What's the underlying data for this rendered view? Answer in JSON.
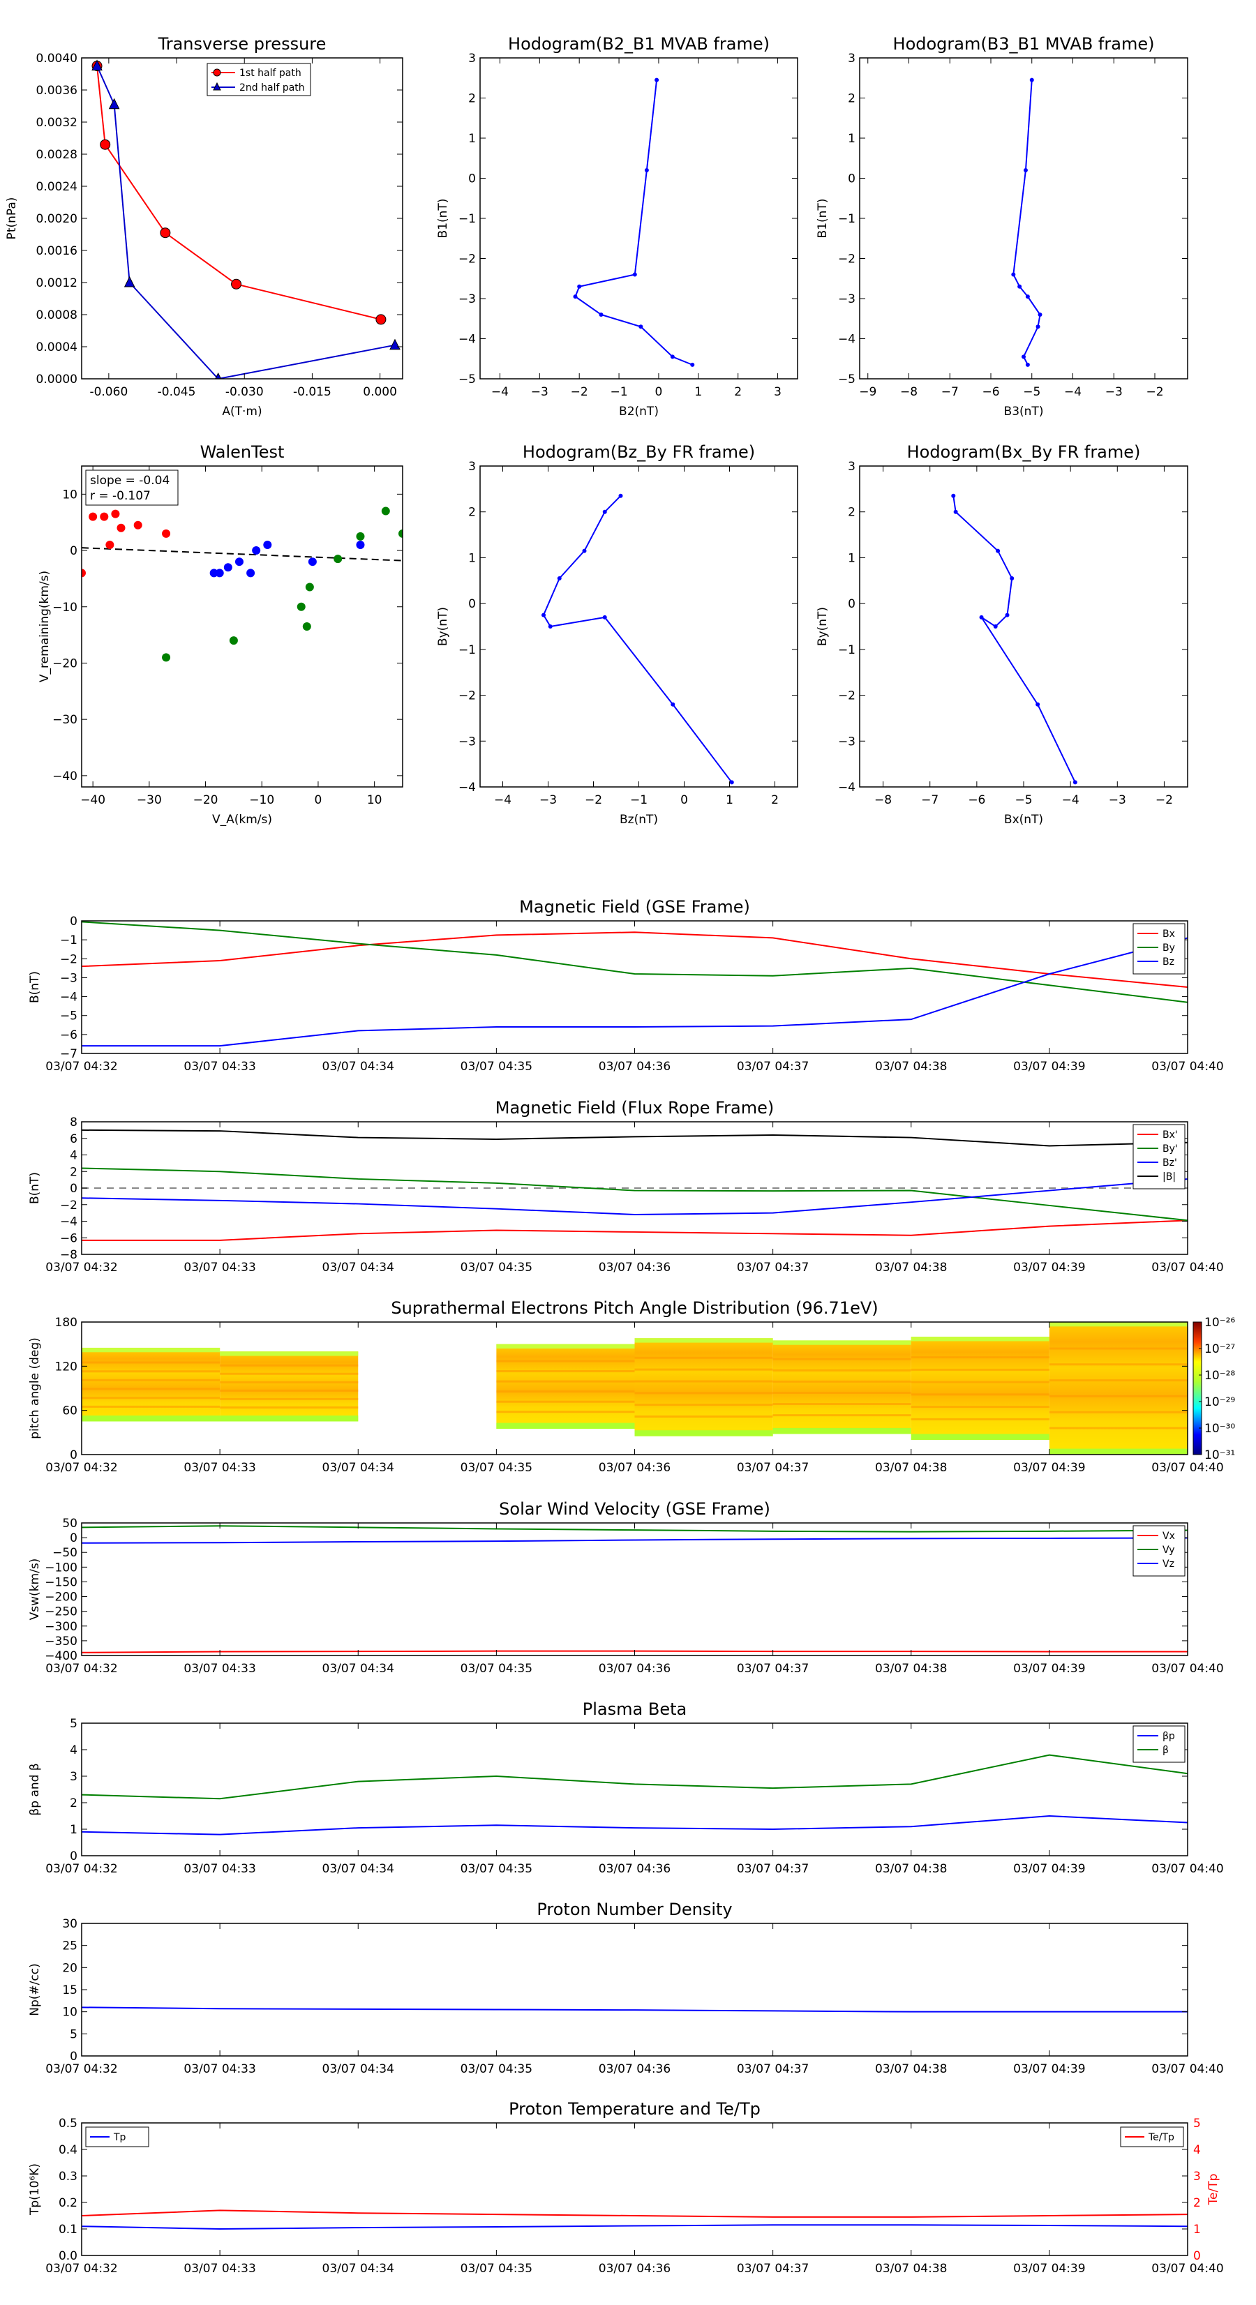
{
  "time_ticks": [
    "03/07 04:32",
    "03/07 04:33",
    "03/07 04:34",
    "03/07 04:35",
    "03/07 04:36",
    "03/07 04:37",
    "03/07 04:38",
    "03/07 04:39",
    "03/07 04:40"
  ],
  "chart_data": [
    {
      "id": "tp",
      "type": "line",
      "title": "Transverse pressure",
      "xlabel": "A(T·m)",
      "ylabel": "Pt(nPa)",
      "xlim": [
        -0.066,
        0.005
      ],
      "ylim": [
        0,
        0.004
      ],
      "xticks": [
        -0.06,
        -0.045,
        -0.03,
        -0.015,
        0.0
      ],
      "xtick_labels": [
        "-0.060",
        "-0.045",
        "-0.030",
        "-0.015",
        "0.000"
      ],
      "yticks": [
        0,
        0.0004,
        0.0008,
        0.0012,
        0.0016,
        0.002,
        0.0024,
        0.0028,
        0.0032,
        0.0036,
        0.004
      ],
      "ytick_labels": [
        "0.0000",
        "0.0004",
        "0.0008",
        "0.0012",
        "0.0016",
        "0.0020",
        "0.0024",
        "0.0028",
        "0.0032",
        "0.0036",
        "0.0040"
      ],
      "legend": "top-center",
      "series": [
        {
          "name": "1st half path",
          "color": "#ff0000",
          "marker": "circle",
          "x": [
            -0.0626,
            -0.0608,
            -0.0475,
            -0.0318,
            0.0002
          ],
          "y": [
            0.0039,
            0.00292,
            0.00182,
            0.00118,
            0.00074
          ]
        },
        {
          "name": "2nd half path",
          "color": "#0000cc",
          "marker": "triangle",
          "x": [
            -0.0626,
            -0.0588,
            -0.0554,
            -0.0358,
            0.0033
          ],
          "y": [
            0.0039,
            0.00342,
            0.0012,
            0.0,
            0.00042
          ]
        }
      ]
    },
    {
      "id": "h1",
      "type": "line",
      "title": "Hodogram(B2_B1 MVAB frame)",
      "xlabel": "B2(nT)",
      "ylabel": "B1(nT)",
      "xlim": [
        -4.5,
        3.5
      ],
      "ylim": [
        -5,
        3
      ],
      "xticks": [
        -4,
        -3,
        -2,
        -1,
        0,
        1,
        2,
        3
      ],
      "yticks": [
        -5,
        -4,
        -3,
        -2,
        -1,
        0,
        1,
        2,
        3
      ],
      "series": [
        {
          "color": "#0000ff",
          "x": [
            -0.05,
            -0.3,
            -0.6,
            -2.0,
            -2.1,
            -1.45,
            -0.45,
            0.35,
            0.85
          ],
          "y": [
            2.45,
            0.2,
            -2.4,
            -2.7,
            -2.95,
            -3.4,
            -3.7,
            -4.45,
            -4.65
          ]
        }
      ]
    },
    {
      "id": "h2",
      "type": "line",
      "title": "Hodogram(B3_B1 MVAB frame)",
      "xlabel": "B3(nT)",
      "ylabel": "B1(nT)",
      "xlim": [
        -9.2,
        -1.2
      ],
      "ylim": [
        -5,
        3
      ],
      "xticks": [
        -9,
        -8,
        -7,
        -6,
        -5,
        -4,
        -3,
        -2
      ],
      "yticks": [
        -5,
        -4,
        -3,
        -2,
        -1,
        0,
        1,
        2,
        3
      ],
      "series": [
        {
          "color": "#0000ff",
          "x": [
            -5.0,
            -5.15,
            -5.45,
            -5.3,
            -5.1,
            -4.8,
            -4.85,
            -5.2,
            -5.1
          ],
          "y": [
            2.45,
            0.2,
            -2.4,
            -2.7,
            -2.95,
            -3.4,
            -3.7,
            -4.45,
            -4.65
          ]
        }
      ]
    },
    {
      "id": "walen",
      "type": "scatter",
      "title": "WalenTest",
      "xlabel": "V_A(km/s)",
      "ylabel": "V_remaining(km/s)",
      "xlim": [
        -42,
        15
      ],
      "ylim": [
        -42,
        15
      ],
      "xticks": [
        -40,
        -30,
        -20,
        -10,
        0,
        10
      ],
      "yticks": [
        -40,
        -30,
        -20,
        -10,
        0,
        10
      ],
      "annotation": [
        "slope = -0.04",
        "r = -0.107"
      ],
      "fit": {
        "slope": -0.04,
        "intercept": -1.2
      },
      "series": [
        {
          "color": "#ff0000",
          "x": [
            -42,
            -40,
            -38,
            -37,
            -36,
            -35,
            -32,
            -27
          ],
          "y": [
            -4,
            6,
            6,
            1,
            6.5,
            4,
            4.5,
            3
          ]
        },
        {
          "color": "#0000ff",
          "x": [
            -18.5,
            -17.5,
            -16,
            -14,
            -12,
            -11,
            -9,
            -1,
            7.5
          ],
          "y": [
            -4,
            -4,
            -3,
            -2,
            -4,
            0,
            1,
            -2,
            1
          ]
        },
        {
          "color": "#008000",
          "x": [
            -27,
            -15,
            -3,
            -2,
            -1.5,
            3.5,
            7.5,
            12,
            15
          ],
          "y": [
            -19,
            -16,
            -10,
            -13.5,
            -6.5,
            -1.5,
            2.5,
            7,
            3
          ]
        }
      ]
    },
    {
      "id": "h3",
      "type": "line",
      "title": "Hodogram(Bz_By FR frame)",
      "xlabel": "Bz(nT)",
      "ylabel": "By(nT)",
      "xlim": [
        -4.5,
        2.5
      ],
      "ylim": [
        -4,
        3
      ],
      "xticks": [
        -4,
        -3,
        -2,
        -1,
        0,
        1,
        2
      ],
      "yticks": [
        -4,
        -3,
        -2,
        -1,
        0,
        1,
        2,
        3
      ],
      "series": [
        {
          "color": "#0000ff",
          "x": [
            -1.4,
            -1.75,
            -2.2,
            -2.75,
            -3.1,
            -2.95,
            -1.75,
            -0.25,
            1.05
          ],
          "y": [
            2.35,
            2.0,
            1.15,
            0.55,
            -0.25,
            -0.5,
            -0.3,
            -2.2,
            -3.9
          ]
        }
      ]
    },
    {
      "id": "h4",
      "type": "line",
      "title": "Hodogram(Bx_By FR frame)",
      "xlabel": "Bx(nT)",
      "ylabel": "By(nT)",
      "xlim": [
        -8.5,
        -1.5
      ],
      "ylim": [
        -4,
        3
      ],
      "xticks": [
        -8,
        -7,
        -6,
        -5,
        -4,
        -3,
        -2
      ],
      "yticks": [
        -4,
        -3,
        -2,
        -1,
        0,
        1,
        2,
        3
      ],
      "series": [
        {
          "color": "#0000ff",
          "x": [
            -6.5,
            -6.45,
            -5.55,
            -5.25,
            -5.35,
            -5.6,
            -5.9,
            -4.7,
            -3.9
          ],
          "y": [
            2.35,
            2.0,
            1.15,
            0.55,
            -0.25,
            -0.5,
            -0.3,
            -2.2,
            -3.9
          ]
        }
      ]
    },
    {
      "id": "bgse",
      "type": "line",
      "title": "Magnetic Field (GSE Frame)",
      "ylabel": "B(nT)",
      "xlim": [
        0,
        8
      ],
      "ylim": [
        -7,
        0
      ],
      "yticks": [
        -7,
        -6,
        -5,
        -4,
        -3,
        -2,
        -1,
        0
      ],
      "legend": "top-right",
      "series": [
        {
          "name": "Bx",
          "color": "#ff0000",
          "x": [
            0,
            1,
            2,
            3,
            4,
            5,
            6,
            7,
            8
          ],
          "y": [
            -2.4,
            -2.1,
            -1.3,
            -0.75,
            -0.6,
            -0.9,
            -2.0,
            -2.8,
            -3.5
          ]
        },
        {
          "name": "By",
          "color": "#008000",
          "x": [
            0,
            1,
            2,
            3,
            4,
            5,
            6,
            7,
            8
          ],
          "y": [
            -0.05,
            -0.5,
            -1.2,
            -1.8,
            -2.8,
            -2.9,
            -2.5,
            -3.4,
            -4.3
          ]
        },
        {
          "name": "Bz",
          "color": "#0000ff",
          "x": [
            0,
            1,
            2,
            3,
            4,
            5,
            6,
            7,
            8
          ],
          "y": [
            -6.6,
            -6.6,
            -5.8,
            -5.6,
            -5.6,
            -5.55,
            -5.2,
            -2.8,
            -0.9
          ]
        }
      ]
    },
    {
      "id": "bfr",
      "type": "line",
      "title": "Magnetic Field (Flux Rope Frame)",
      "ylabel": "B(nT)",
      "xlim": [
        0,
        8
      ],
      "ylim": [
        -8,
        8
      ],
      "yticks": [
        -8,
        -6,
        -4,
        -2,
        0,
        2,
        4,
        6,
        8
      ],
      "legend": "top-right",
      "zero_line": true,
      "series": [
        {
          "name": "Bx'",
          "color": "#ff0000",
          "x": [
            0,
            1,
            2,
            3,
            4,
            5,
            6,
            7,
            8
          ],
          "y": [
            -6.3,
            -6.3,
            -5.5,
            -5.1,
            -5.3,
            -5.5,
            -5.7,
            -4.6,
            -3.9
          ]
        },
        {
          "name": "By'",
          "color": "#008000",
          "x": [
            0,
            1,
            2,
            3,
            4,
            5,
            6,
            7,
            8
          ],
          "y": [
            2.4,
            2.0,
            1.1,
            0.6,
            -0.3,
            -0.35,
            -0.3,
            -2.1,
            -3.9
          ]
        },
        {
          "name": "Bz'",
          "color": "#0000ff",
          "x": [
            0,
            1,
            2,
            3,
            4,
            5,
            6,
            7,
            8
          ],
          "y": [
            -1.2,
            -1.5,
            -1.9,
            -2.5,
            -3.2,
            -3.0,
            -1.7,
            -0.3,
            1.1
          ]
        },
        {
          "name": "|B|",
          "color": "#000000",
          "x": [
            0,
            1,
            2,
            3,
            4,
            5,
            6,
            7,
            8
          ],
          "y": [
            7.0,
            6.9,
            6.1,
            5.9,
            6.2,
            6.4,
            6.1,
            5.1,
            5.5
          ]
        }
      ]
    },
    {
      "id": "pad",
      "type": "heatmap",
      "title": "Suprathermal Electrons Pitch Angle Distribution (96.71eV)",
      "ylabel": "pitch angle (deg)",
      "xlim": [
        0,
        8
      ],
      "ylim": [
        0,
        180
      ],
      "yticks": [
        0,
        60,
        120,
        180
      ],
      "colorbar": {
        "min_exp": -31,
        "max_exp": -26,
        "labels": [
          "10⁻²⁶",
          "10⁻²⁷",
          "10⁻²⁸",
          "10⁻²⁹",
          "10⁻³⁰",
          "10⁻³¹"
        ]
      },
      "columns": [
        {
          "x0": 0,
          "x1": 1,
          "lo": 45,
          "hi": 145
        },
        {
          "x0": 1,
          "x1": 2,
          "lo": 45,
          "hi": 140
        },
        {
          "x0": 3,
          "x1": 4,
          "lo": 35,
          "hi": 150
        },
        {
          "x0": 4,
          "x1": 5,
          "lo": 25,
          "hi": 158
        },
        {
          "x0": 5,
          "x1": 6,
          "lo": 28,
          "hi": 155
        },
        {
          "x0": 6,
          "x1": 7,
          "lo": 20,
          "hi": 160
        },
        {
          "x0": 7,
          "x1": 8,
          "lo": 0,
          "hi": 180
        }
      ]
    },
    {
      "id": "vsw",
      "type": "line",
      "title": "Solar Wind Velocity (GSE Frame)",
      "ylabel": "Vsw(km/s)",
      "xlim": [
        0,
        8
      ],
      "ylim": [
        -400,
        50
      ],
      "yticks": [
        -400,
        -350,
        -300,
        -250,
        -200,
        -150,
        -100,
        -50,
        0,
        50
      ],
      "legend": "top-right",
      "series": [
        {
          "name": "Vx",
          "color": "#ff0000",
          "x": [
            0,
            1,
            2,
            3,
            4,
            5,
            6,
            7,
            8
          ],
          "y": [
            -390,
            -387,
            -386,
            -385,
            -385,
            -386,
            -386,
            -387,
            -387
          ]
        },
        {
          "name": "Vy",
          "color": "#008000",
          "x": [
            0,
            1,
            2,
            3,
            4,
            5,
            6,
            7,
            8
          ],
          "y": [
            35,
            40,
            35,
            30,
            26,
            22,
            20,
            22,
            25
          ]
        },
        {
          "name": "Vz",
          "color": "#0000ff",
          "x": [
            0,
            1,
            2,
            3,
            4,
            5,
            6,
            7,
            8
          ],
          "y": [
            -18,
            -17,
            -14,
            -12,
            -8,
            -5,
            -3,
            -2,
            -1
          ]
        }
      ]
    },
    {
      "id": "beta",
      "type": "line",
      "title": "Plasma Beta",
      "ylabel": "βp and β",
      "xlim": [
        0,
        8
      ],
      "ylim": [
        0,
        5
      ],
      "yticks": [
        0,
        1,
        2,
        3,
        4,
        5
      ],
      "legend": "top-right",
      "series": [
        {
          "name": "βp",
          "color": "#0000ff",
          "x": [
            0,
            1,
            2,
            3,
            4,
            5,
            6,
            7,
            8
          ],
          "y": [
            0.9,
            0.8,
            1.05,
            1.15,
            1.05,
            1.0,
            1.1,
            1.5,
            1.25
          ]
        },
        {
          "name": "β",
          "color": "#008000",
          "x": [
            0,
            1,
            2,
            3,
            4,
            5,
            6,
            7,
            8
          ],
          "y": [
            2.3,
            2.15,
            2.8,
            3.0,
            2.7,
            2.55,
            2.7,
            3.8,
            3.1
          ]
        }
      ]
    },
    {
      "id": "np",
      "type": "line",
      "title": "Proton Number Density",
      "ylabel": "Np(#/cc)",
      "xlim": [
        0,
        8
      ],
      "ylim": [
        0,
        30
      ],
      "yticks": [
        0,
        5,
        10,
        15,
        20,
        25,
        30
      ],
      "series": [
        {
          "color": "#0000ff",
          "x": [
            0,
            1,
            2,
            3,
            4,
            5,
            6,
            7,
            8
          ],
          "y": [
            11,
            10.7,
            10.6,
            10.5,
            10.4,
            10.2,
            10.0,
            10.0,
            10.0
          ]
        }
      ]
    },
    {
      "id": "temp",
      "type": "line",
      "title": "Proton Temperature and Te/Tp",
      "ylabel": "Tp(10⁶K)",
      "ylabel_right": "Te/Tp",
      "xlim": [
        0,
        8
      ],
      "ylim": [
        0,
        0.5
      ],
      "yticks": [
        0,
        0.1,
        0.2,
        0.3,
        0.4,
        0.5
      ],
      "ytick_labels": [
        "0.0",
        "0.1",
        "0.2",
        "0.3",
        "0.4",
        "0.5"
      ],
      "ylim_right": [
        0,
        5
      ],
      "yticks_right": [
        0,
        1,
        2,
        3,
        4,
        5
      ],
      "series": [
        {
          "name": "Tp",
          "color": "#0000ff",
          "axis": "left",
          "x": [
            0,
            1,
            2,
            3,
            4,
            5,
            6,
            7,
            8
          ],
          "y": [
            0.11,
            0.1,
            0.105,
            0.108,
            0.112,
            0.115,
            0.115,
            0.113,
            0.11
          ]
        },
        {
          "name": "Te/Tp",
          "color": "#ff0000",
          "axis": "right",
          "x": [
            0,
            1,
            2,
            3,
            4,
            5,
            6,
            7,
            8
          ],
          "y": [
            1.5,
            1.7,
            1.6,
            1.55,
            1.5,
            1.45,
            1.45,
            1.5,
            1.55
          ]
        }
      ]
    }
  ]
}
